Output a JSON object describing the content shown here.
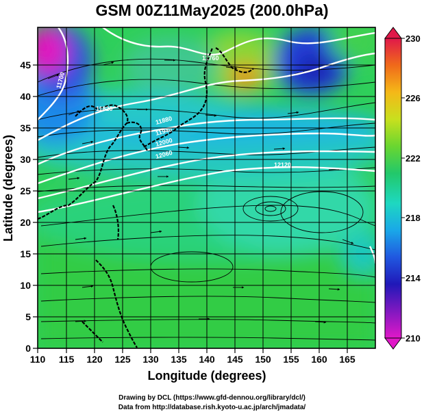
{
  "title": "GSM 00Z11May2025 (200.0hPa)",
  "xlabel": "Longitude (degrees)",
  "ylabel": "Latitude  (degrees)",
  "xticks": [
    "110",
    "115",
    "120",
    "125",
    "130",
    "135",
    "140",
    "145",
    "150",
    "155",
    "160",
    "165"
  ],
  "yticks": [
    "0",
    "5",
    "10",
    "15",
    "20",
    "25",
    "30",
    "35",
    "40",
    "45"
  ],
  "colorbar": {
    "labels": [
      "230",
      "226",
      "222",
      "218",
      "214",
      "210"
    ],
    "colors": [
      "#e0184a",
      "#f06a1a",
      "#f5b818",
      "#c8e01e",
      "#6ad630",
      "#22c86a",
      "#1ed8c0",
      "#1aa8e8",
      "#2058e0",
      "#2018b8",
      "#8018c0",
      "#e018c8"
    ]
  },
  "contour_labels": [
    "11700",
    "11760",
    "11820",
    "11880",
    "11940",
    "12000",
    "12060",
    "12120"
  ],
  "credits": [
    "Drawing by DCL (https://www.gfd-dennou.org/library/dcl/)",
    "Data from http://database.rish.kyoto-u.ac.jp/arch/jmadata/"
  ]
}
